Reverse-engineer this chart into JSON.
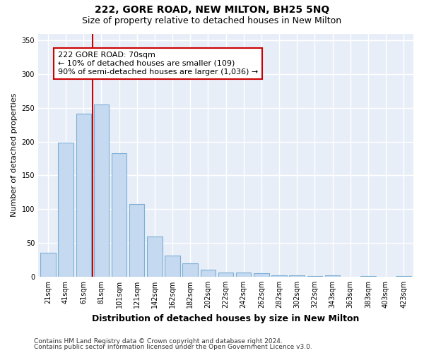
{
  "title": "222, GORE ROAD, NEW MILTON, BH25 5NQ",
  "subtitle": "Size of property relative to detached houses in New Milton",
  "xlabel": "Distribution of detached houses by size in New Milton",
  "ylabel": "Number of detached properties",
  "categories": [
    "21sqm",
    "41sqm",
    "61sqm",
    "81sqm",
    "101sqm",
    "121sqm",
    "142sqm",
    "162sqm",
    "182sqm",
    "202sqm",
    "222sqm",
    "242sqm",
    "262sqm",
    "282sqm",
    "302sqm",
    "322sqm",
    "343sqm",
    "363sqm",
    "383sqm",
    "403sqm",
    "423sqm"
  ],
  "values": [
    35,
    198,
    241,
    255,
    183,
    107,
    59,
    31,
    20,
    10,
    6,
    6,
    5,
    2,
    2,
    1,
    2,
    0,
    1,
    0,
    1
  ],
  "bar_color": "#c5d9f0",
  "bar_edge_color": "#7bafd4",
  "vline_x": 2.5,
  "vline_color": "#cc0000",
  "annotation_text": "222 GORE ROAD: 70sqm\n← 10% of detached houses are smaller (109)\n90% of semi-detached houses are larger (1,036) →",
  "annotation_box_color": "#ffffff",
  "annotation_box_edge_color": "#cc0000",
  "ylim": [
    0,
    360
  ],
  "yticks": [
    0,
    50,
    100,
    150,
    200,
    250,
    300,
    350
  ],
  "footer_line1": "Contains HM Land Registry data © Crown copyright and database right 2024.",
  "footer_line2": "Contains public sector information licensed under the Open Government Licence v3.0.",
  "plot_bg_color": "#e8eef8",
  "grid_color": "#ffffff",
  "title_fontsize": 10,
  "subtitle_fontsize": 9,
  "xlabel_fontsize": 9,
  "ylabel_fontsize": 8,
  "tick_fontsize": 7,
  "footer_fontsize": 6.5,
  "ann_fontsize": 8
}
